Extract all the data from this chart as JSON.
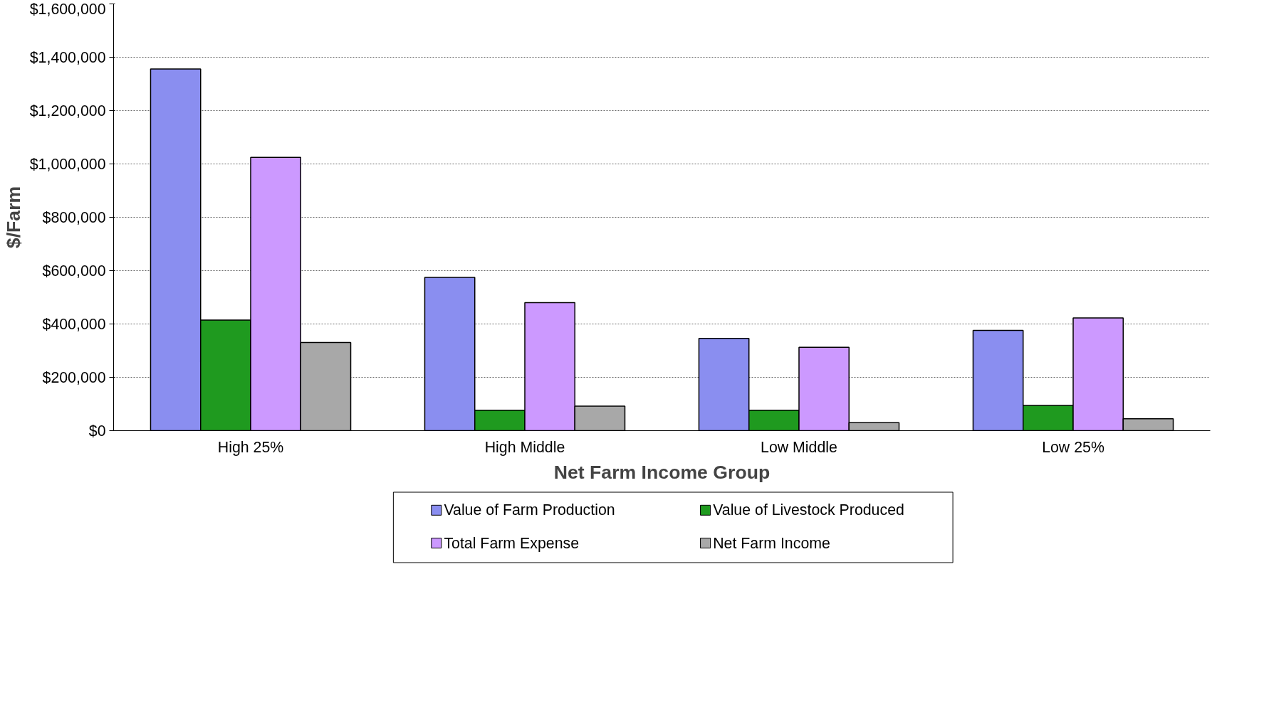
{
  "chart_data": {
    "type": "bar",
    "xlabel": "Net Farm Income Group",
    "ylabel": "$/Farm",
    "categories": [
      "High 25%",
      "High Middle",
      "Low Middle",
      "Low 25%"
    ],
    "series": [
      {
        "name": "Value of Farm Production",
        "color": "#8a8ef0",
        "values": [
          1356000,
          575000,
          346000,
          376000
        ]
      },
      {
        "name": "Value of Livestock Produced",
        "color": "#1f9a1f",
        "values": [
          415000,
          77000,
          77000,
          95000
        ]
      },
      {
        "name": "Total Farm Expense",
        "color": "#cc99ff",
        "values": [
          1025000,
          480000,
          313000,
          423000
        ]
      },
      {
        "name": "Net Farm Income",
        "color": "#a8a8a8",
        "values": [
          331000,
          92000,
          30000,
          45000
        ]
      }
    ],
    "ylim": [
      0,
      1600000
    ],
    "yticks": [
      {
        "value": 0,
        "label": "$0"
      },
      {
        "value": 200000,
        "label": "$200,000"
      },
      {
        "value": 400000,
        "label": "$400,000"
      },
      {
        "value": 600000,
        "label": "$600,000"
      },
      {
        "value": 800000,
        "label": "$800,000"
      },
      {
        "value": 1000000,
        "label": "$1,000,000"
      },
      {
        "value": 1200000,
        "label": "$1,200,000"
      },
      {
        "value": 1400000,
        "label": "$1,400,000"
      },
      {
        "value": 1600000,
        "label": "$1,600,000"
      }
    ],
    "grid": "y",
    "legend": "bottom"
  }
}
